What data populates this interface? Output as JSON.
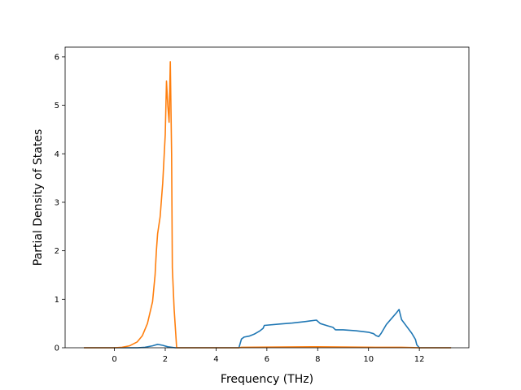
{
  "chart_data": {
    "type": "line",
    "title": "",
    "xlabel": "Frequency (THz)",
    "ylabel": "Partial Density of States",
    "xlim": [
      -1.94,
      13.95
    ],
    "ylim": [
      0,
      6.2
    ],
    "xticks": [
      0,
      2,
      4,
      6,
      8,
      10,
      12
    ],
    "yticks": [
      0,
      1,
      2,
      3,
      4,
      5,
      6
    ],
    "grid": false,
    "legend": "none",
    "series": [
      {
        "color": "#1f77b4",
        "points": [
          [
            -1.2,
            0
          ],
          [
            0.9,
            0
          ],
          [
            1.2,
            0.01
          ],
          [
            1.5,
            0.04
          ],
          [
            1.7,
            0.07
          ],
          [
            1.9,
            0.05
          ],
          [
            2.1,
            0.02
          ],
          [
            2.4,
            0
          ],
          [
            4.9,
            0
          ],
          [
            5.0,
            0.18
          ],
          [
            5.1,
            0.22
          ],
          [
            5.3,
            0.24
          ],
          [
            5.5,
            0.28
          ],
          [
            5.7,
            0.34
          ],
          [
            5.85,
            0.4
          ],
          [
            5.9,
            0.46
          ],
          [
            6.5,
            0.49
          ],
          [
            7.0,
            0.51
          ],
          [
            7.5,
            0.54
          ],
          [
            7.95,
            0.57
          ],
          [
            8.1,
            0.5
          ],
          [
            8.4,
            0.45
          ],
          [
            8.6,
            0.42
          ],
          [
            8.7,
            0.37
          ],
          [
            9.0,
            0.37
          ],
          [
            9.5,
            0.35
          ],
          [
            10.0,
            0.32
          ],
          [
            10.2,
            0.29
          ],
          [
            10.3,
            0.25
          ],
          [
            10.4,
            0.23
          ],
          [
            10.5,
            0.3
          ],
          [
            10.7,
            0.48
          ],
          [
            10.9,
            0.6
          ],
          [
            11.1,
            0.72
          ],
          [
            11.2,
            0.79
          ],
          [
            11.3,
            0.58
          ],
          [
            11.5,
            0.44
          ],
          [
            11.7,
            0.3
          ],
          [
            11.85,
            0.17
          ],
          [
            11.9,
            0.06
          ],
          [
            12.0,
            0
          ],
          [
            13.25,
            0
          ]
        ]
      },
      {
        "color": "#ff7f0e",
        "points": [
          [
            -1.2,
            0
          ],
          [
            0,
            0
          ],
          [
            0.3,
            0.01
          ],
          [
            0.6,
            0.04
          ],
          [
            0.9,
            0.12
          ],
          [
            1.1,
            0.25
          ],
          [
            1.3,
            0.5
          ],
          [
            1.5,
            0.95
          ],
          [
            1.6,
            1.5
          ],
          [
            1.65,
            2.0
          ],
          [
            1.7,
            2.35
          ],
          [
            1.8,
            2.7
          ],
          [
            1.9,
            3.4
          ],
          [
            2.0,
            4.4
          ],
          [
            2.05,
            5.5
          ],
          [
            2.1,
            5.0
          ],
          [
            2.15,
            4.65
          ],
          [
            2.2,
            5.9
          ],
          [
            2.25,
            4.0
          ],
          [
            2.28,
            1.65
          ],
          [
            2.35,
            0.8
          ],
          [
            2.45,
            0
          ],
          [
            4.9,
            0
          ],
          [
            5.0,
            0.01
          ],
          [
            8.0,
            0.02
          ],
          [
            10.3,
            0.01
          ],
          [
            11.3,
            0.01
          ],
          [
            12.0,
            0
          ],
          [
            13.25,
            0
          ]
        ]
      }
    ]
  }
}
